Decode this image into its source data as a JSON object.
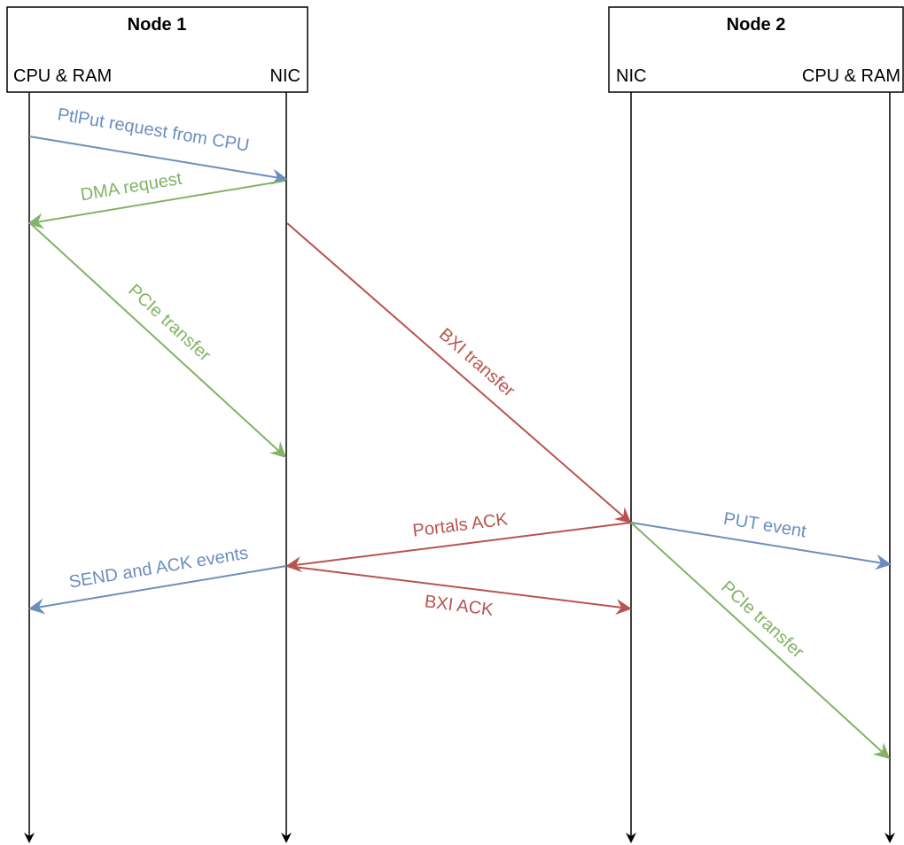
{
  "nodes": [
    {
      "title": "Node 1",
      "lanes": [
        "CPU & RAM",
        "NIC"
      ]
    },
    {
      "title": "Node 2",
      "lanes": [
        "NIC",
        "CPU & RAM"
      ]
    }
  ],
  "colors": {
    "blue": "#6c8ebf",
    "green": "#82b366",
    "red": "#b85450",
    "black": "#000000"
  },
  "messages": [
    {
      "label": "PtlPut request from CPU",
      "color": "blue"
    },
    {
      "label": "DMA request",
      "color": "green"
    },
    {
      "label": "PCIe transfer",
      "color": "green"
    },
    {
      "label": "BXI transfer",
      "color": "red"
    },
    {
      "label": "Portals ACK",
      "color": "red"
    },
    {
      "label": "PUT event",
      "color": "blue"
    },
    {
      "label": "SEND and ACK events",
      "color": "blue"
    },
    {
      "label": "BXI ACK",
      "color": "red"
    },
    {
      "label": "PCIe transfer",
      "color": "green"
    }
  ]
}
